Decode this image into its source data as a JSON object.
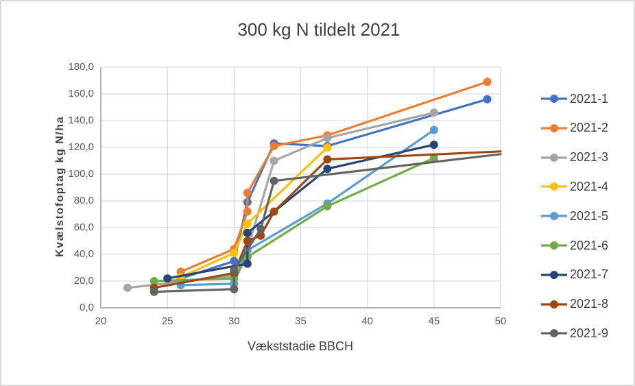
{
  "chart": {
    "title": "300 kg N tildelt 2021"
  },
  "chart_data": {
    "type": "line",
    "title": "300 kg N tildelt 2021",
    "xlabel": "Vækststadie BBCH",
    "ylabel": "Kvælstofoptag kg N/ha",
    "xlim": [
      20,
      50
    ],
    "ylim": [
      0,
      180
    ],
    "x_ticks": [
      20,
      25,
      30,
      35,
      40,
      45,
      50
    ],
    "y_ticks": [
      0,
      20,
      40,
      60,
      80,
      100,
      120,
      140,
      160,
      180
    ],
    "y_tick_labels": [
      "0,0",
      "20,0",
      "40,0",
      "60,0",
      "80,0",
      "100,0",
      "120,0",
      "140,0",
      "160,0",
      "180,0"
    ],
    "grid": true,
    "legend_position": "right",
    "marker": "circle",
    "series": [
      {
        "name": "2021-1",
        "color": "#4472C4",
        "points": [
          [
            26,
            22
          ],
          [
            30,
            35
          ],
          [
            31,
            79
          ],
          [
            33,
            123
          ],
          [
            37,
            121
          ],
          [
            49,
            156
          ]
        ]
      },
      {
        "name": "2021-2",
        "color": "#ED7D31",
        "points": [
          [
            26,
            27
          ],
          [
            30,
            44
          ],
          [
            31,
            72
          ],
          [
            31,
            86
          ],
          [
            33,
            121
          ],
          [
            37,
            129
          ],
          [
            49,
            169
          ]
        ]
      },
      {
        "name": "2021-3",
        "color": "#A5A5A5",
        "points": [
          [
            22,
            15
          ],
          [
            30,
            24
          ],
          [
            31,
            44
          ],
          [
            33,
            110
          ],
          [
            37,
            127
          ],
          [
            45,
            146
          ]
        ]
      },
      {
        "name": "2021-4",
        "color": "#FFC000",
        "points": [
          [
            26,
            23
          ],
          [
            30,
            41
          ],
          [
            31,
            63
          ],
          [
            37,
            120
          ]
        ]
      },
      {
        "name": "2021-5",
        "color": "#5B9BD5",
        "points": [
          [
            26,
            17
          ],
          [
            30,
            18
          ],
          [
            31,
            43
          ],
          [
            37,
            78
          ],
          [
            45,
            133
          ]
        ]
      },
      {
        "name": "2021-6",
        "color": "#70AD47",
        "points": [
          [
            24,
            20
          ],
          [
            30,
            22
          ],
          [
            31,
            38
          ],
          [
            37,
            76
          ],
          [
            45,
            112
          ]
        ]
      },
      {
        "name": "2021-7",
        "color": "#264478",
        "points": [
          [
            25,
            22
          ],
          [
            31,
            33
          ],
          [
            31,
            56
          ],
          [
            37,
            104
          ],
          [
            45,
            122
          ]
        ]
      },
      {
        "name": "2021-8",
        "color": "#9E480E",
        "points": [
          [
            24,
            15
          ],
          [
            30,
            26
          ],
          [
            31,
            50
          ],
          [
            32,
            54
          ],
          [
            33,
            72
          ],
          [
            37,
            111
          ],
          [
            50,
            117
          ]
        ]
      },
      {
        "name": "2021-9",
        "color": "#636363",
        "points": [
          [
            24,
            12
          ],
          [
            30,
            14
          ],
          [
            30,
            28
          ],
          [
            32,
            59
          ],
          [
            33,
            95
          ],
          [
            50,
            115
          ]
        ]
      }
    ],
    "axis_colors": {
      "grid": "#D9D9D9",
      "axis_line": "#9E9E9E",
      "tick_text": "#595959",
      "title_text": "#404040"
    }
  }
}
